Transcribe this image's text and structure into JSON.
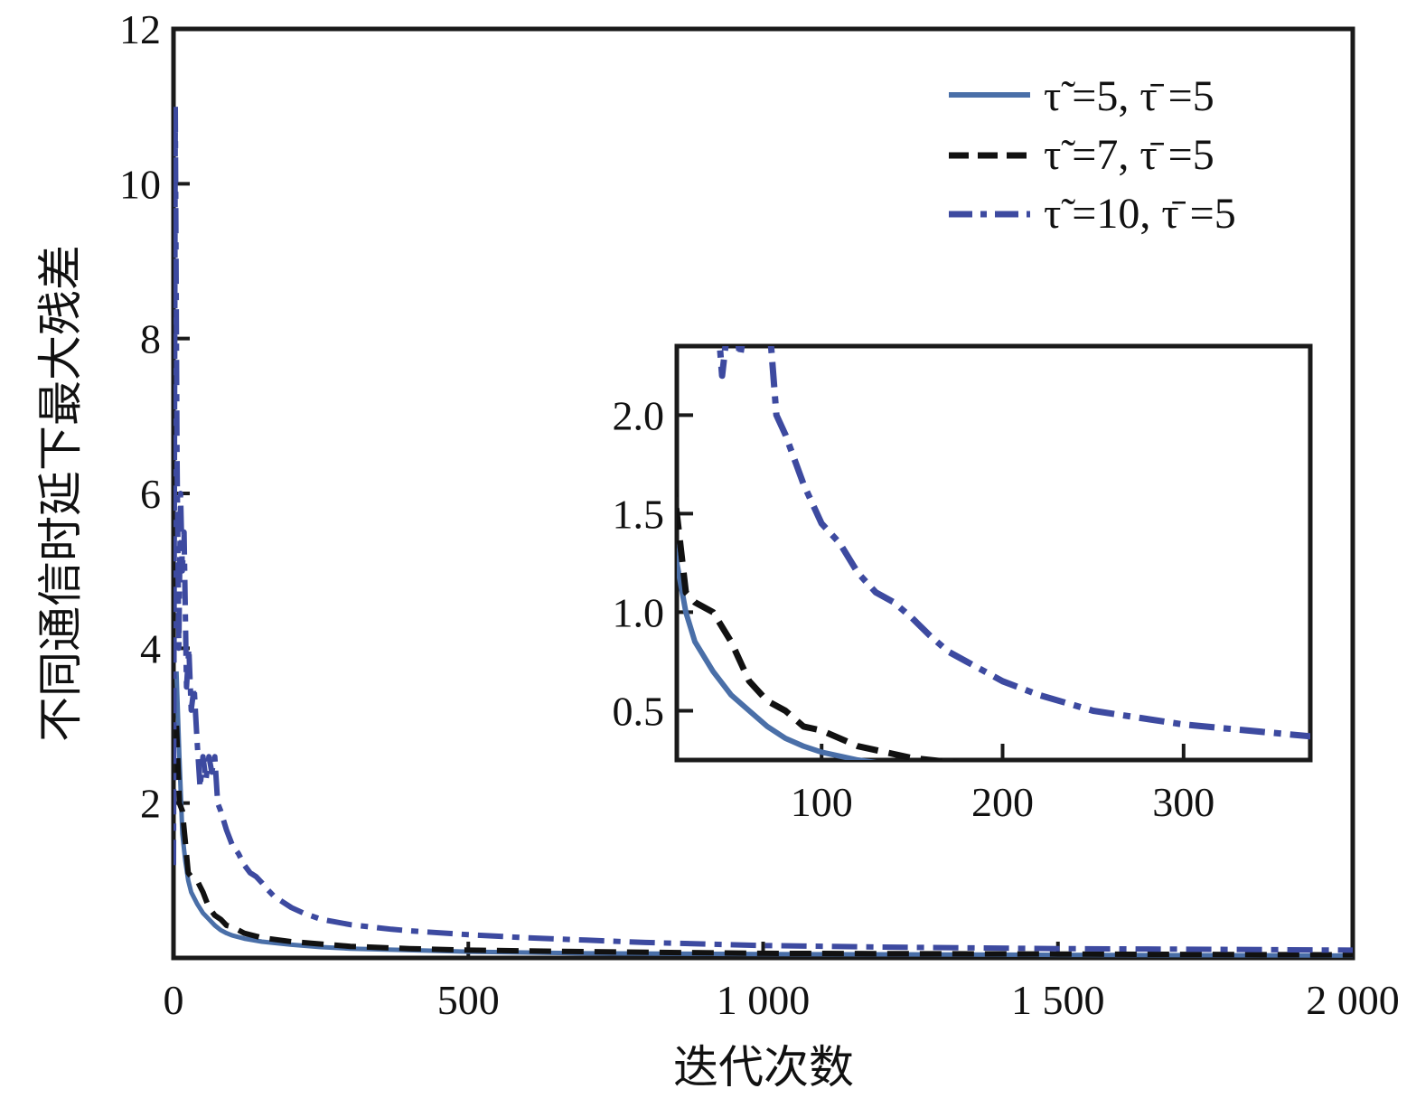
{
  "chart_data": {
    "type": "line",
    "xlabel": "迭代次数",
    "ylabel": "不同通信时延下最大残差",
    "xlim": [
      0,
      2000
    ],
    "ylim": [
      0,
      12
    ],
    "x_ticks": [
      {
        "value": 0,
        "label": "0"
      },
      {
        "value": 500,
        "label": "500"
      },
      {
        "value": 1000,
        "label": "1 000"
      },
      {
        "value": 1500,
        "label": "1 500"
      },
      {
        "value": 2000,
        "label": "2 000"
      }
    ],
    "y_ticks": [
      {
        "value": 2,
        "label": "2"
      },
      {
        "value": 4,
        "label": "4"
      },
      {
        "value": 6,
        "label": "6"
      },
      {
        "value": 8,
        "label": "8"
      },
      {
        "value": 10,
        "label": "10"
      },
      {
        "value": 12,
        "label": "12"
      }
    ],
    "legend_position": "top-right",
    "series": [
      {
        "name": "τ̃ =5, τ̄ =5",
        "color": "#4a6fa8",
        "style": "solid",
        "x": [
          5,
          10,
          15,
          20,
          25,
          30,
          40,
          50,
          60,
          70,
          80,
          90,
          100,
          120,
          150,
          200,
          250,
          300,
          400,
          500,
          700,
          1000,
          1500,
          2000
        ],
        "y": [
          3.7,
          2.6,
          1.6,
          1.25,
          1.0,
          0.85,
          0.7,
          0.58,
          0.5,
          0.42,
          0.36,
          0.32,
          0.29,
          0.25,
          0.21,
          0.17,
          0.14,
          0.12,
          0.1,
          0.08,
          0.06,
          0.05,
          0.04,
          0.03
        ]
      },
      {
        "name": "τ̃ =7, τ̄ =5",
        "color": "#111111",
        "style": "dashed",
        "x": [
          5,
          10,
          15,
          20,
          25,
          30,
          40,
          50,
          60,
          70,
          80,
          90,
          100,
          120,
          150,
          200,
          300,
          400,
          500,
          700,
          1000,
          1500,
          2000
        ],
        "y": [
          3.0,
          2.0,
          1.9,
          1.5,
          1.1,
          1.05,
          1.0,
          0.85,
          0.65,
          0.55,
          0.5,
          0.42,
          0.4,
          0.32,
          0.26,
          0.21,
          0.15,
          0.12,
          0.1,
          0.08,
          0.06,
          0.05,
          0.04
        ]
      },
      {
        "name": "τ̃ =10, τ̄ =5",
        "color": "#3d4aa0",
        "style": "dashdot",
        "x": [
          0,
          3,
          6,
          9,
          12,
          15,
          18,
          22,
          26,
          30,
          35,
          40,
          45,
          50,
          55,
          60,
          65,
          70,
          75,
          80,
          90,
          100,
          110,
          120,
          130,
          140,
          150,
          160,
          170,
          180,
          200,
          220,
          250,
          300,
          370,
          400,
          500,
          600,
          700,
          800,
          1000,
          1200,
          1500,
          1800,
          2000
        ],
        "y": [
          1.2,
          11.0,
          6.5,
          4.0,
          6.0,
          5.0,
          5.5,
          3.5,
          4.0,
          3.2,
          3.5,
          2.8,
          2.2,
          2.6,
          2.3,
          2.6,
          2.4,
          2.6,
          2.0,
          1.9,
          1.65,
          1.45,
          1.35,
          1.2,
          1.1,
          1.05,
          0.97,
          0.88,
          0.8,
          0.75,
          0.65,
          0.58,
          0.5,
          0.43,
          0.37,
          0.35,
          0.3,
          0.26,
          0.23,
          0.2,
          0.16,
          0.14,
          0.12,
          0.11,
          0.1
        ]
      }
    ],
    "inset": {
      "xlim": [
        20,
        370
      ],
      "ylim": [
        0.25,
        2.35
      ],
      "x_ticks": [
        {
          "value": 100,
          "label": "100"
        },
        {
          "value": 200,
          "label": "200"
        },
        {
          "value": 300,
          "label": "300"
        }
      ],
      "y_ticks": [
        {
          "value": 0.5,
          "label": "0.5"
        },
        {
          "value": 1.0,
          "label": "1.0"
        },
        {
          "value": 1.5,
          "label": "1.5"
        },
        {
          "value": 2.0,
          "label": "2.0"
        }
      ]
    }
  }
}
